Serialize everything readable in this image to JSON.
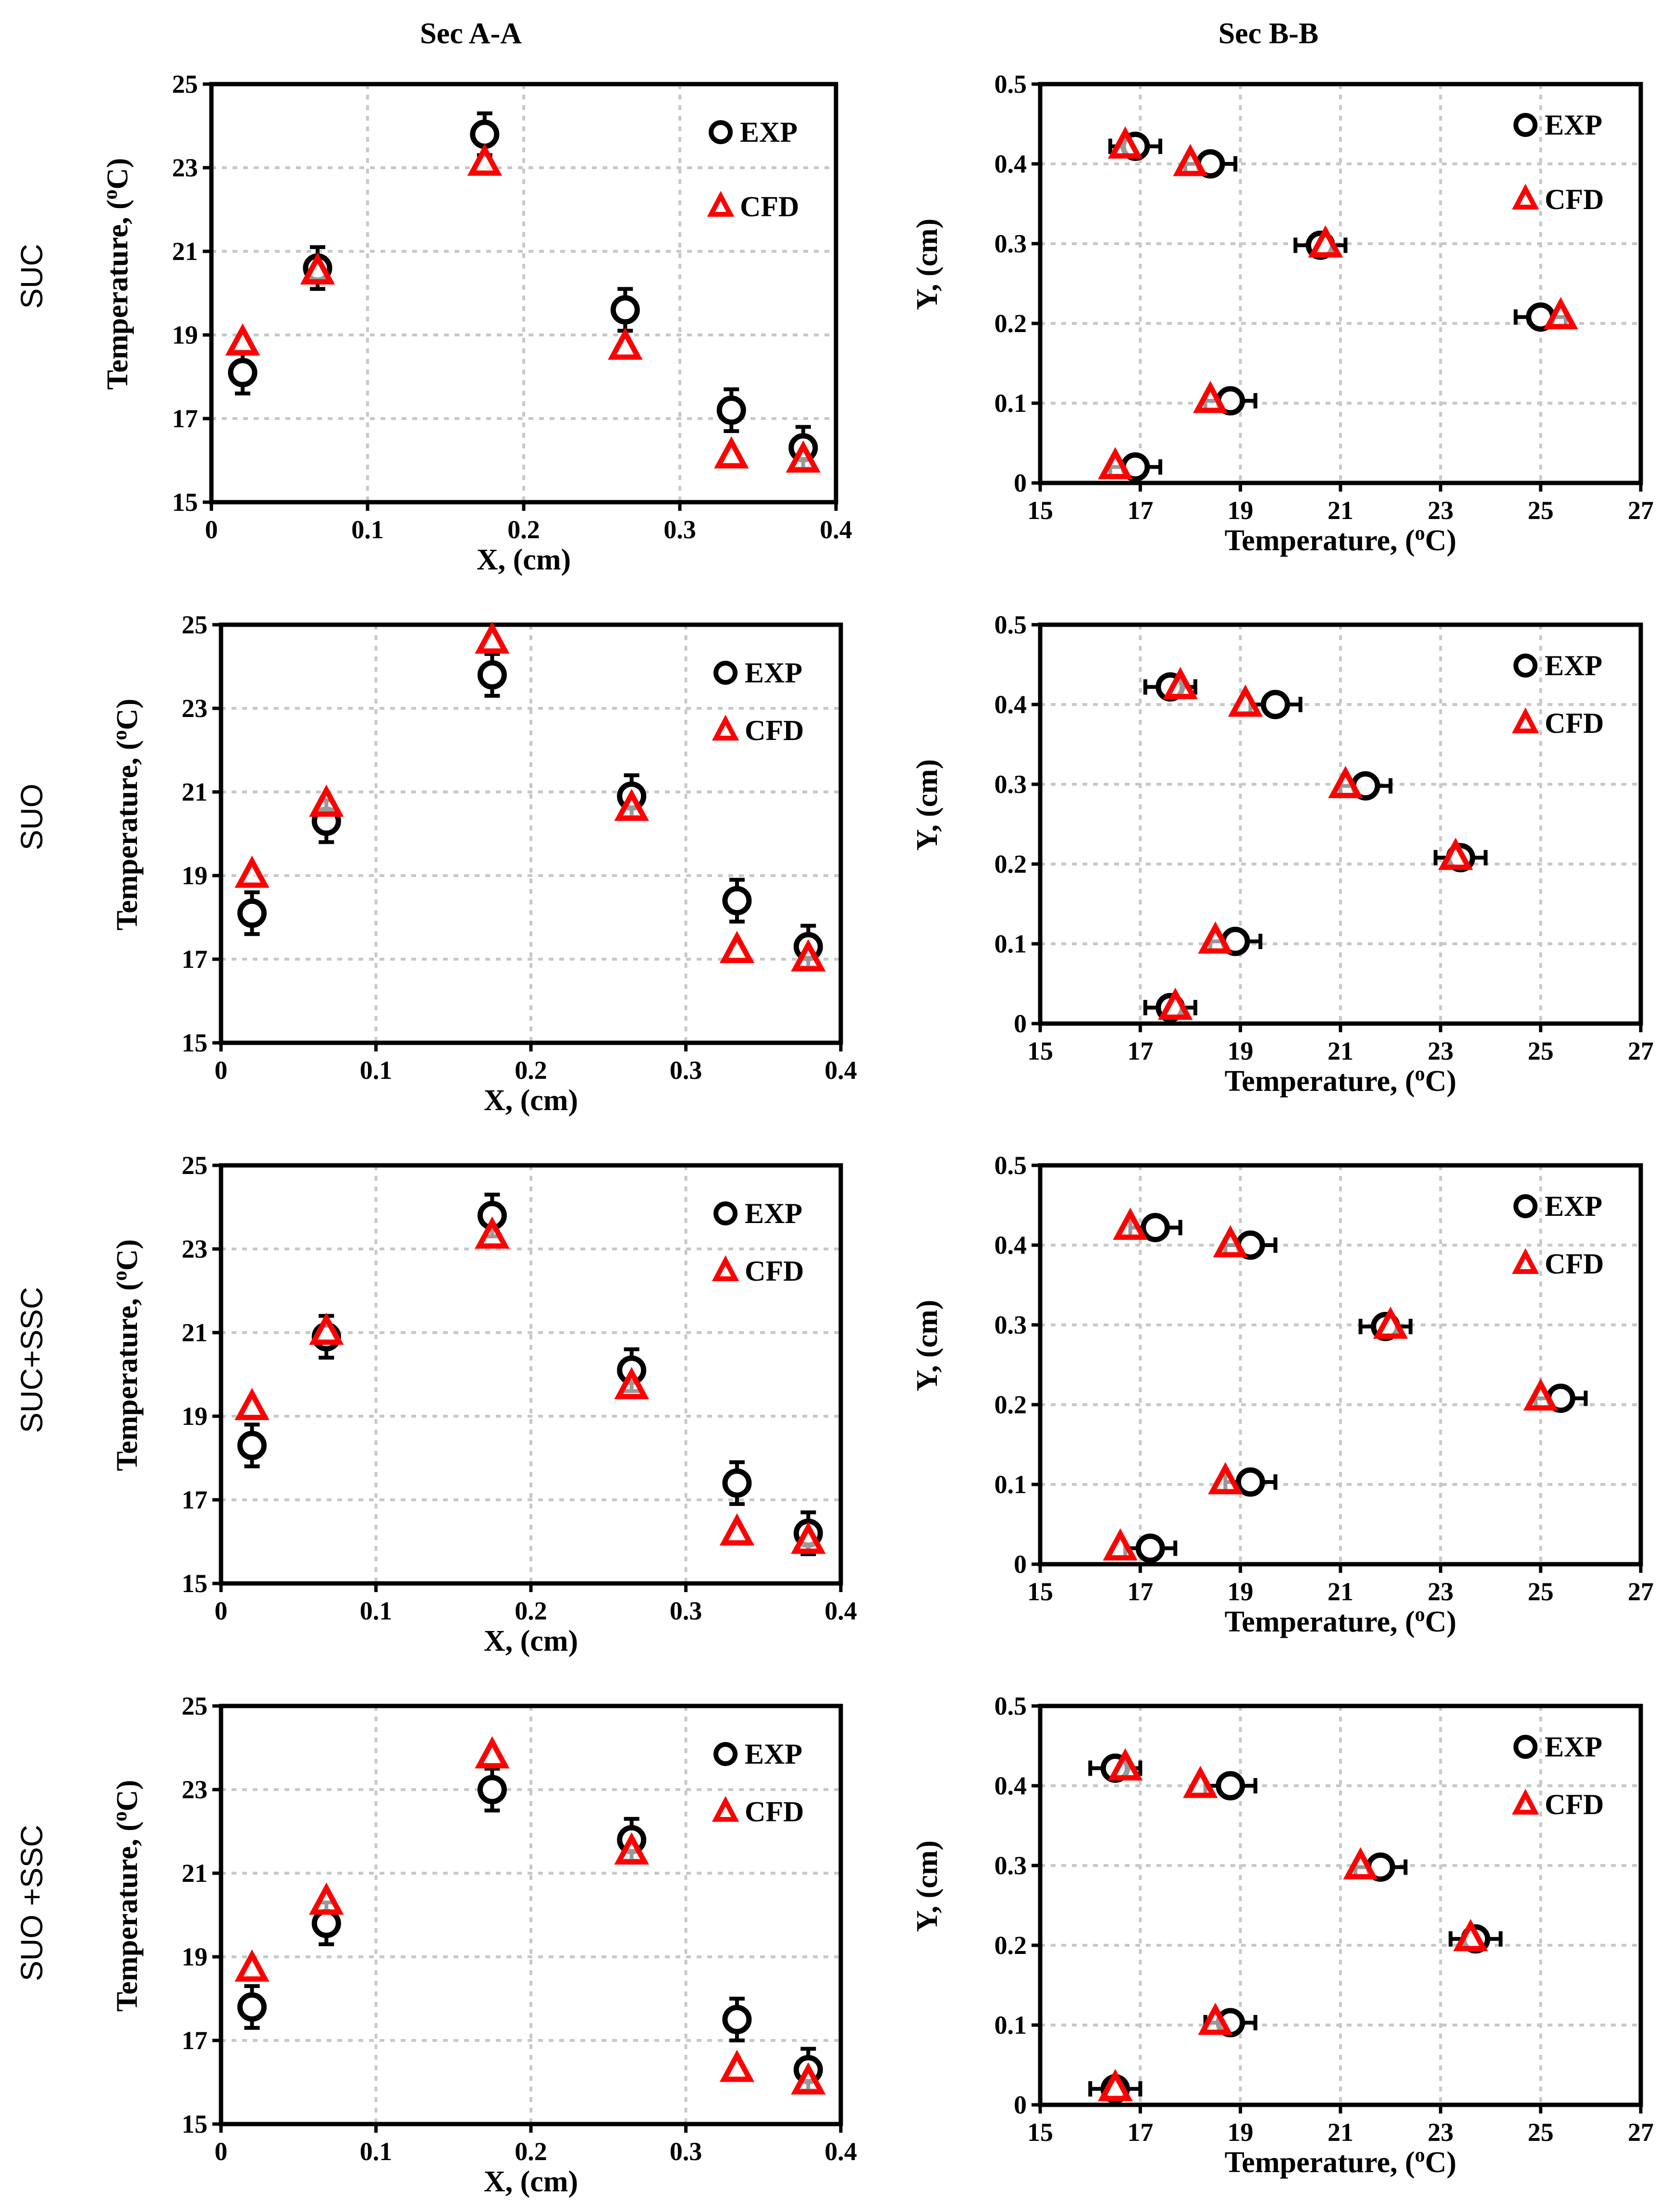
{
  "column_titles": [
    "Sec A-A",
    "Sec B-B"
  ],
  "row_labels": [
    "SUC",
    "SUO",
    "SUC+SSC",
    "SUO +SSC"
  ],
  "legend": {
    "exp": "EXP",
    "cfd": "CFD"
  },
  "colors": {
    "exp": "#000000",
    "cfd": "#ff0000",
    "grid": "#c8c8c8"
  },
  "chart_data": [
    {
      "type": "scatter",
      "section": "Sec A-A",
      "case": "SUC",
      "xlabel": "X, (cm)",
      "ylabel": "Temperature, (oC)",
      "xlim": [
        0,
        0.4
      ],
      "ylim": [
        15,
        25
      ],
      "xticks": [
        "0",
        "0.1",
        "0.2",
        "0.3",
        "0.4"
      ],
      "yticks": [
        "15",
        "17",
        "19",
        "21",
        "23",
        "25"
      ],
      "series": [
        {
          "name": "EXP",
          "x": [
            0.02,
            0.068,
            0.175,
            0.265,
            0.333,
            0.379
          ],
          "y": [
            18.1,
            20.6,
            23.8,
            19.6,
            17.2,
            16.3
          ],
          "err": [
            0.5,
            0.5,
            0.5,
            0.5,
            0.5,
            0.5
          ]
        },
        {
          "name": "CFD",
          "x": [
            0.02,
            0.068,
            0.175,
            0.265,
            0.333,
            0.379
          ],
          "y": [
            18.8,
            20.5,
            23.1,
            18.7,
            16.1,
            16.0
          ]
        }
      ]
    },
    {
      "type": "scatter",
      "section": "Sec B-B",
      "case": "SUC",
      "xlabel": "Temperature, (oC)",
      "ylabel": "Y, (cm)",
      "xlim": [
        15,
        27
      ],
      "ylim": [
        0,
        0.5
      ],
      "xticks": [
        "15",
        "17",
        "19",
        "21",
        "23",
        "25",
        "27"
      ],
      "yticks": [
        "0",
        "0.1",
        "0.2",
        "0.3",
        "0.4",
        "0.5"
      ],
      "series": [
        {
          "name": "EXP",
          "x": [
            16.9,
            18.8,
            25.0,
            20.6,
            18.4,
            16.9
          ],
          "y": [
            0.02,
            0.103,
            0.208,
            0.298,
            0.4,
            0.422
          ],
          "err": [
            0.5,
            0.5,
            0.5,
            0.5,
            0.5,
            0.5
          ]
        },
        {
          "name": "CFD",
          "x": [
            16.5,
            18.4,
            25.4,
            20.7,
            18.0,
            16.7
          ],
          "y": [
            0.02,
            0.103,
            0.208,
            0.298,
            0.4,
            0.422
          ]
        }
      ]
    },
    {
      "type": "scatter",
      "section": "Sec A-A",
      "case": "SUO",
      "xlabel": "X, (cm)",
      "ylabel": "Temperature, (oC)",
      "xlim": [
        0,
        0.4
      ],
      "ylim": [
        15,
        25
      ],
      "xticks": [
        "0",
        "0.1",
        "0.2",
        "0.3",
        "0.4"
      ],
      "yticks": [
        "15",
        "17",
        "19",
        "21",
        "23",
        "25"
      ],
      "series": [
        {
          "name": "EXP",
          "x": [
            0.02,
            0.068,
            0.175,
            0.265,
            0.333,
            0.379
          ],
          "y": [
            18.1,
            20.3,
            23.8,
            20.9,
            18.4,
            17.3
          ],
          "err": [
            0.5,
            0.5,
            0.5,
            0.5,
            0.5,
            0.5
          ]
        },
        {
          "name": "CFD",
          "x": [
            0.02,
            0.068,
            0.175,
            0.265,
            0.333,
            0.379
          ],
          "y": [
            19.0,
            20.7,
            24.6,
            20.6,
            17.2,
            17.0
          ]
        }
      ]
    },
    {
      "type": "scatter",
      "section": "Sec B-B",
      "case": "SUO",
      "xlabel": "Temperature, (oC)",
      "ylabel": "Y, (cm)",
      "xlim": [
        15,
        27
      ],
      "ylim": [
        0,
        0.5
      ],
      "xticks": [
        "15",
        "17",
        "19",
        "21",
        "23",
        "25",
        "27"
      ],
      "yticks": [
        "0",
        "0.1",
        "0.2",
        "0.3",
        "0.4",
        "0.5"
      ],
      "series": [
        {
          "name": "EXP",
          "x": [
            17.6,
            18.9,
            23.4,
            21.5,
            19.7,
            17.6
          ],
          "y": [
            0.02,
            0.103,
            0.208,
            0.298,
            0.4,
            0.422
          ],
          "err": [
            0.5,
            0.5,
            0.5,
            0.5,
            0.5,
            0.5
          ]
        },
        {
          "name": "CFD",
          "x": [
            17.7,
            18.5,
            23.3,
            21.1,
            19.1,
            17.8
          ],
          "y": [
            0.02,
            0.103,
            0.208,
            0.298,
            0.4,
            0.422
          ]
        }
      ]
    },
    {
      "type": "scatter",
      "section": "Sec A-A",
      "case": "SUC+SSC",
      "xlabel": "X, (cm)",
      "ylabel": "Temperature, (oC)",
      "xlim": [
        0,
        0.4
      ],
      "ylim": [
        15,
        25
      ],
      "xticks": [
        "0",
        "0.1",
        "0.2",
        "0.3",
        "0.4"
      ],
      "yticks": [
        "15",
        "17",
        "19",
        "21",
        "23",
        "25"
      ],
      "series": [
        {
          "name": "EXP",
          "x": [
            0.02,
            0.068,
            0.175,
            0.265,
            0.333,
            0.379
          ],
          "y": [
            18.3,
            20.9,
            23.8,
            20.1,
            17.4,
            16.2
          ],
          "err": [
            0.5,
            0.5,
            0.5,
            0.5,
            0.5,
            0.5
          ]
        },
        {
          "name": "CFD",
          "x": [
            0.02,
            0.068,
            0.175,
            0.265,
            0.333,
            0.379
          ],
          "y": [
            19.2,
            21.0,
            23.3,
            19.7,
            16.2,
            16.0
          ]
        }
      ]
    },
    {
      "type": "scatter",
      "section": "Sec B-B",
      "case": "SUC+SSC",
      "xlabel": "Temperature, (oC)",
      "ylabel": "Y, (cm)",
      "xlim": [
        15,
        27
      ],
      "ylim": [
        0,
        0.5
      ],
      "xticks": [
        "15",
        "17",
        "19",
        "21",
        "23",
        "25",
        "27"
      ],
      "yticks": [
        "0",
        "0.1",
        "0.2",
        "0.3",
        "0.4",
        "0.5"
      ],
      "series": [
        {
          "name": "EXP",
          "x": [
            17.2,
            19.2,
            25.4,
            21.9,
            19.2,
            17.3
          ],
          "y": [
            0.02,
            0.103,
            0.208,
            0.298,
            0.4,
            0.422
          ],
          "err": [
            0.5,
            0.5,
            0.5,
            0.5,
            0.5,
            0.5
          ]
        },
        {
          "name": "CFD",
          "x": [
            16.6,
            18.7,
            25.0,
            22.0,
            18.8,
            16.8
          ],
          "y": [
            0.02,
            0.103,
            0.208,
            0.298,
            0.4,
            0.422
          ]
        }
      ]
    },
    {
      "type": "scatter",
      "section": "Sec A-A",
      "case": "SUO +SSC",
      "xlabel": "X, (cm)",
      "ylabel": "Temperature, (oC)",
      "xlim": [
        0,
        0.4
      ],
      "ylim": [
        15,
        25
      ],
      "xticks": [
        "0",
        "0.1",
        "0.2",
        "0.3",
        "0.4"
      ],
      "yticks": [
        "15",
        "17",
        "19",
        "21",
        "23",
        "25"
      ],
      "series": [
        {
          "name": "EXP",
          "x": [
            0.02,
            0.068,
            0.175,
            0.265,
            0.333,
            0.379
          ],
          "y": [
            17.8,
            19.8,
            23.0,
            21.8,
            17.5,
            16.3
          ],
          "err": [
            0.5,
            0.5,
            0.5,
            0.5,
            0.5,
            0.5
          ]
        },
        {
          "name": "CFD",
          "x": [
            0.02,
            0.068,
            0.175,
            0.265,
            0.333,
            0.379
          ],
          "y": [
            18.7,
            20.3,
            23.8,
            21.5,
            16.3,
            16.0
          ]
        }
      ]
    },
    {
      "type": "scatter",
      "section": "Sec B-B",
      "case": "SUO +SSC",
      "xlabel": "Temperature, (oC)",
      "ylabel": "Y, (cm)",
      "xlim": [
        15,
        27
      ],
      "ylim": [
        0,
        0.5
      ],
      "xticks": [
        "15",
        "17",
        "19",
        "21",
        "23",
        "25",
        "27"
      ],
      "yticks": [
        "0",
        "0.1",
        "0.2",
        "0.3",
        "0.4",
        "0.5"
      ],
      "series": [
        {
          "name": "EXP",
          "x": [
            16.5,
            18.8,
            23.7,
            21.8,
            18.8,
            16.5
          ],
          "y": [
            0.02,
            0.103,
            0.208,
            0.298,
            0.4,
            0.422
          ],
          "err": [
            0.5,
            0.5,
            0.5,
            0.5,
            0.5,
            0.5
          ]
        },
        {
          "name": "CFD",
          "x": [
            16.5,
            18.5,
            23.6,
            21.4,
            18.2,
            16.7
          ],
          "y": [
            0.02,
            0.103,
            0.208,
            0.298,
            0.4,
            0.422
          ]
        }
      ]
    }
  ]
}
